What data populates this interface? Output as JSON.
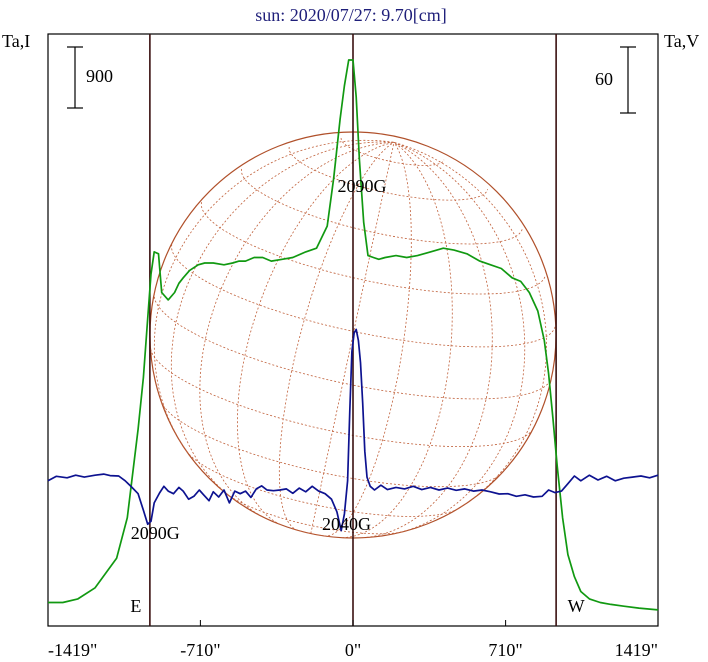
{
  "chart_data": {
    "type": "line",
    "title": "sun: 2020/07/27: 9.70[cm]",
    "y_left_label": "Ta,I",
    "y_right_label": "Ta,V",
    "scale_left": "900",
    "scale_right": "60",
    "x_ticks": [
      "-1419\"",
      "-710\"",
      "0\"",
      "710\"",
      "1419\""
    ],
    "x_tick_values": [
      -1419,
      -710,
      0,
      710,
      1419
    ],
    "xlim": [
      -1419,
      1419
    ],
    "limb_labels": [
      "E",
      "W"
    ],
    "limb_positions": [
      -945,
      945
    ],
    "markers": [
      {
        "x": -945,
        "label": "E"
      },
      {
        "x": 0,
        "label": "0"
      },
      {
        "x": 945,
        "label": "W"
      }
    ],
    "annotations": [
      {
        "text": "2090G",
        "x": 45,
        "curve": "I",
        "pos": "above"
      },
      {
        "text": "2090G",
        "x": -920,
        "curve": "V",
        "pos": "below"
      },
      {
        "text": "2040G",
        "x": -30,
        "curve": "V",
        "pos": "below"
      }
    ],
    "series": [
      {
        "name": "I",
        "color": "#119911",
        "x": [
          -1419,
          -1350,
          -1280,
          -1200,
          -1100,
          -1050,
          -1000,
          -975,
          -955,
          -940,
          -925,
          -905,
          -890,
          -860,
          -830,
          -810,
          -790,
          -760,
          -720,
          -690,
          -650,
          -600,
          -560,
          -530,
          -500,
          -460,
          -420,
          -380,
          -330,
          -280,
          -220,
          -170,
          -120,
          -90,
          -60,
          -40,
          -20,
          0,
          15,
          30,
          50,
          70,
          95,
          120,
          150,
          200,
          250,
          300,
          360,
          420,
          470,
          530,
          590,
          640,
          690,
          740,
          780,
          820,
          860,
          890,
          910,
          930,
          950,
          975,
          1000,
          1030,
          1060,
          1100,
          1150,
          1200,
          1260,
          1330,
          1419
        ],
        "y": [
          0.05,
          0.05,
          0.06,
          0.09,
          0.17,
          0.28,
          0.52,
          0.66,
          0.82,
          0.94,
          1.0,
          0.995,
          0.89,
          0.87,
          0.89,
          0.915,
          0.93,
          0.95,
          0.965,
          0.97,
          0.97,
          0.965,
          0.97,
          0.975,
          0.975,
          0.985,
          0.985,
          0.975,
          0.98,
          0.985,
          1.0,
          1.01,
          1.07,
          1.2,
          1.36,
          1.45,
          1.52,
          1.52,
          1.42,
          1.25,
          1.08,
          0.99,
          0.985,
          0.98,
          0.985,
          0.99,
          0.985,
          0.99,
          1.0,
          1.01,
          1.005,
          0.995,
          0.975,
          0.965,
          0.955,
          0.93,
          0.92,
          0.89,
          0.84,
          0.76,
          0.67,
          0.55,
          0.42,
          0.28,
          0.18,
          0.12,
          0.08,
          0.06,
          0.05,
          0.045,
          0.04,
          0.035,
          0.03
        ]
      },
      {
        "name": "V",
        "color": "#0d1290",
        "x": [
          -1419,
          -1380,
          -1330,
          -1290,
          -1250,
          -1200,
          -1160,
          -1130,
          -1090,
          -1060,
          -1030,
          -1000,
          -975,
          -955,
          -940,
          -925,
          -900,
          -880,
          -860,
          -835,
          -810,
          -790,
          -765,
          -740,
          -715,
          -695,
          -670,
          -650,
          -625,
          -600,
          -575,
          -550,
          -525,
          -500,
          -475,
          -450,
          -425,
          -400,
          -370,
          -340,
          -310,
          -280,
          -250,
          -220,
          -190,
          -160,
          -130,
          -100,
          -75,
          -55,
          -40,
          -25,
          -15,
          -5,
          5,
          15,
          25,
          35,
          45,
          55,
          65,
          80,
          100,
          130,
          160,
          200,
          240,
          280,
          320,
          360,
          400,
          440,
          480,
          520,
          560,
          600,
          640,
          680,
          720,
          760,
          800,
          840,
          880,
          910,
          940,
          970,
          1000,
          1030,
          1060,
          1100,
          1140,
          1180,
          1220,
          1260,
          1300,
          1340,
          1380,
          1419
        ],
        "y": [
          0.38,
          0.392,
          0.388,
          0.395,
          0.39,
          0.395,
          0.398,
          0.394,
          0.393,
          0.38,
          0.363,
          0.345,
          0.3,
          0.262,
          0.27,
          0.32,
          0.347,
          0.365,
          0.352,
          0.345,
          0.362,
          0.352,
          0.33,
          0.338,
          0.355,
          0.342,
          0.326,
          0.35,
          0.336,
          0.355,
          0.32,
          0.352,
          0.345,
          0.352,
          0.335,
          0.358,
          0.366,
          0.355,
          0.353,
          0.355,
          0.358,
          0.346,
          0.36,
          0.35,
          0.365,
          0.352,
          0.345,
          0.33,
          0.296,
          0.245,
          0.29,
          0.38,
          0.57,
          0.73,
          0.78,
          0.79,
          0.76,
          0.7,
          0.59,
          0.46,
          0.39,
          0.365,
          0.355,
          0.368,
          0.356,
          0.362,
          0.358,
          0.365,
          0.356,
          0.362,
          0.355,
          0.36,
          0.354,
          0.358,
          0.352,
          0.355,
          0.35,
          0.344,
          0.345,
          0.338,
          0.342,
          0.336,
          0.338,
          0.355,
          0.348,
          0.352,
          0.372,
          0.393,
          0.38,
          0.395,
          0.382,
          0.392,
          0.38,
          0.387,
          0.39,
          0.393,
          0.388,
          0.395
        ]
      }
    ]
  }
}
